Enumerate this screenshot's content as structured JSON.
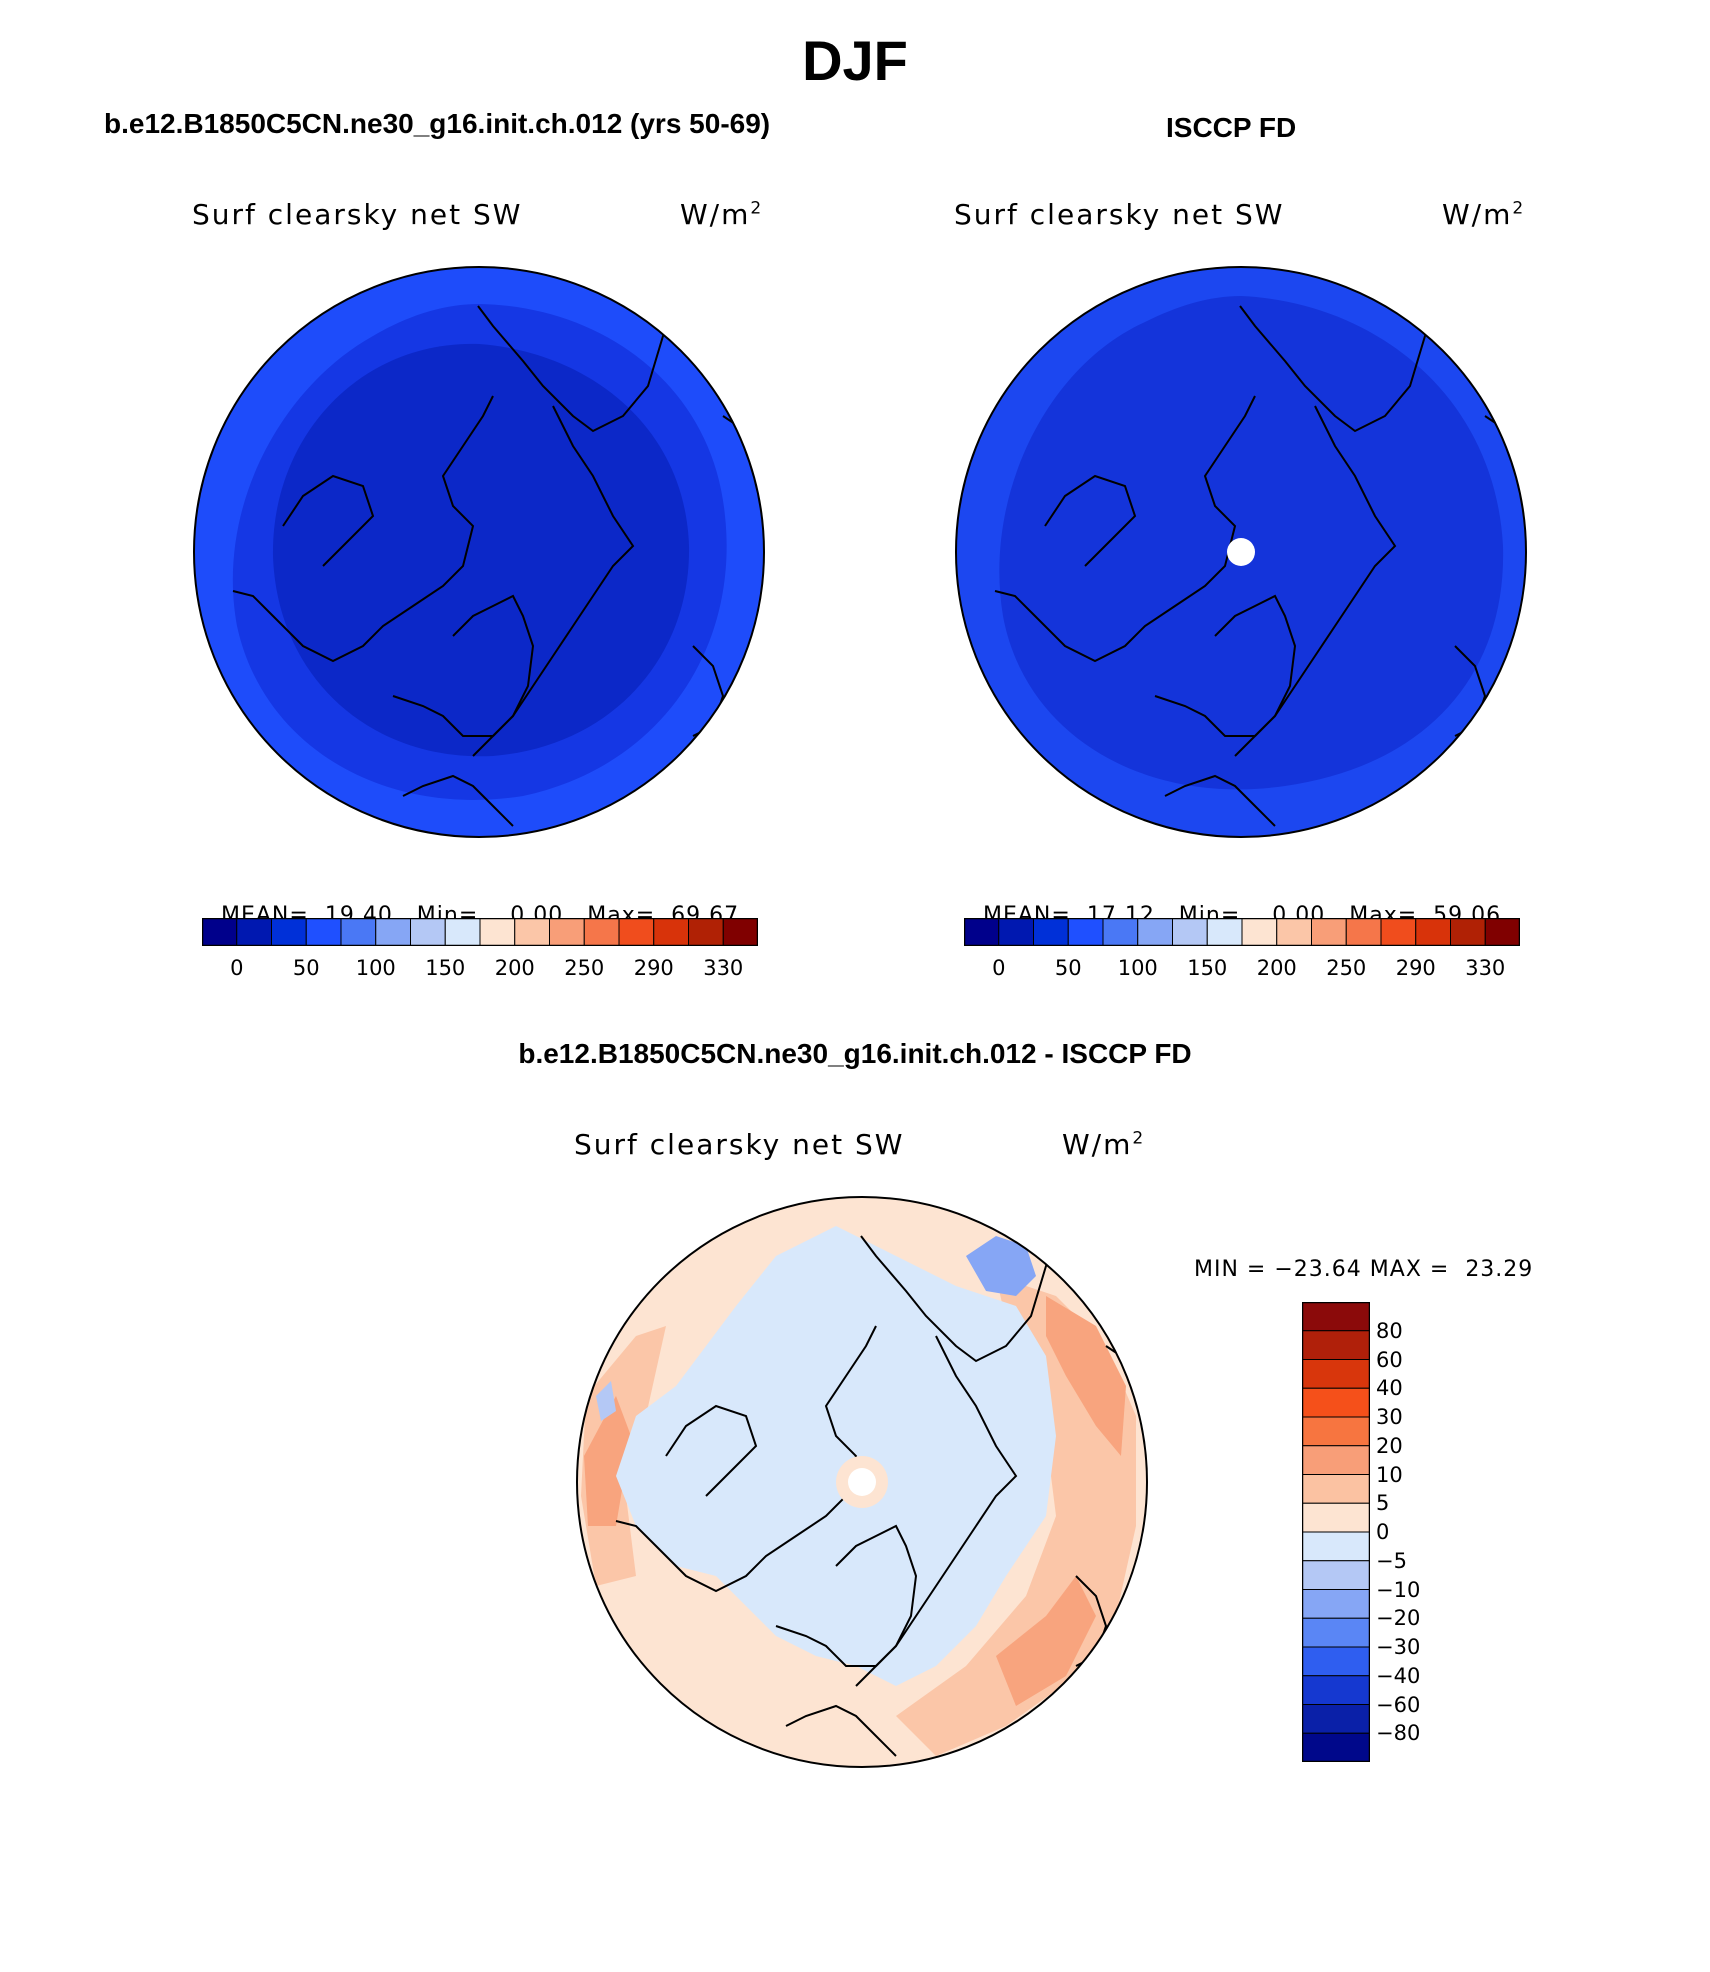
{
  "page_title": "DJF",
  "chart_data": [
    {
      "type": "heatmap",
      "panel_title": "b.e12.B1850C5CN.ne30_g16.init.ch.012 (yrs 50-69)",
      "left_label": "Surf clearsky net SW",
      "units": "W/m",
      "units_exp": "2",
      "projection": "polar stereographic, north pole",
      "stats": {
        "mean_label": "MEAN=",
        "mean": "19.40",
        "min_label": "Min=",
        "min": "0.00",
        "max_label": "Max=",
        "max": "69.67"
      },
      "colorbar": {
        "orientation": "horizontal",
        "ticks": [
          "0",
          "50",
          "100",
          "150",
          "200",
          "250",
          "290",
          "330"
        ],
        "colors": [
          "#00008b",
          "#0018b0",
          "#0030d8",
          "#1f50ff",
          "#4a78f5",
          "#86a6f5",
          "#b4c8f5",
          "#d8e8fb",
          "#fde4d2",
          "#fbc6a8",
          "#f89e78",
          "#f5764a",
          "#f04d1d",
          "#d8330a",
          "#b02105",
          "#800000"
        ]
      },
      "field": {
        "outer_value_approx": 45,
        "polar_value_approx": 8,
        "levels_shown": [
          "#1e4cfa",
          "#1537e4",
          "#0c28c8"
        ]
      },
      "pole_missing": false
    },
    {
      "type": "heatmap",
      "panel_title": "ISCCP FD",
      "left_label": "Surf clearsky net SW",
      "units": "W/m",
      "units_exp": "2",
      "projection": "polar stereographic, north pole",
      "stats": {
        "mean_label": "MEAN=",
        "mean": "17.12",
        "min_label": "Min=",
        "min": "0.00",
        "max_label": "Max=",
        "max": "59.06"
      },
      "colorbar": {
        "orientation": "horizontal",
        "ticks": [
          "0",
          "50",
          "100",
          "150",
          "200",
          "250",
          "290",
          "330"
        ],
        "colors": [
          "#00008b",
          "#0018b0",
          "#0030d8",
          "#1f50ff",
          "#4a78f5",
          "#86a6f5",
          "#b4c8f5",
          "#d8e8fb",
          "#fde4d2",
          "#fbc6a8",
          "#f89e78",
          "#f5764a",
          "#f04d1d",
          "#d8330a",
          "#b02105",
          "#800000"
        ]
      },
      "field": {
        "outer_value_approx": 40,
        "polar_value_approx": 10,
        "levels_shown": [
          "#1c47f0",
          "#1434da"
        ]
      },
      "pole_missing": true
    },
    {
      "type": "heatmap",
      "panel_title": "b.e12.B1850C5CN.ne30_g16.init.ch.012 - ISCCP FD",
      "left_label": "Surf clearsky net SW",
      "units": "W/m",
      "units_exp": "2",
      "projection": "polar stereographic, north pole",
      "stats": {
        "min_label": "MIN =",
        "min": "−23.64",
        "max_label": "MAX =",
        "max": "23.29"
      },
      "colorbar": {
        "orientation": "vertical",
        "ticks": [
          "80",
          "60",
          "40",
          "30",
          "20",
          "10",
          "5",
          "0",
          "−5",
          "−10",
          "−20",
          "−30",
          "−40",
          "−60",
          "−80"
        ],
        "colors": [
          "#8b0a0a",
          "#b0200a",
          "#d8360c",
          "#f5501a",
          "#f77540",
          "#f89e78",
          "#fbc2a2",
          "#fde4d2",
          "#d8e8fb",
          "#b4c8f5",
          "#86a6f5",
          "#5a86f5",
          "#2f5ef0",
          "#1538d0",
          "#0a20a8",
          "#00088b"
        ]
      },
      "field": {
        "arctic_ocean_value_approx": -2,
        "subpolar_value_approx": 8,
        "levels_shown": [
          "#fde4d2",
          "#fbc6a8",
          "#f8a47e",
          "#d8e8fb",
          "#86a6f5"
        ]
      },
      "pole_missing": true
    }
  ]
}
